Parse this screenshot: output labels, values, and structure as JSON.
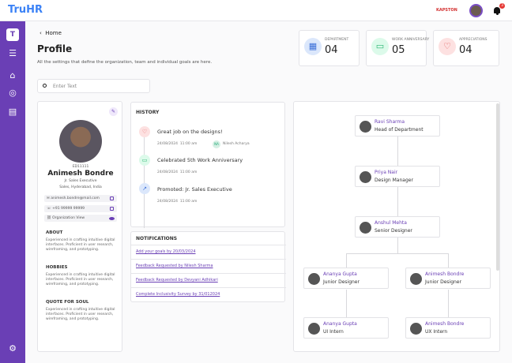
{
  "app": {
    "title": "TruHR",
    "company_logo": "KAPSTON",
    "notification_count": "3"
  },
  "sidebar": {
    "badge": "T",
    "icons": [
      "menu-icon",
      "home-icon",
      "target-icon",
      "chart-icon",
      "gear-icon"
    ]
  },
  "breadcrumb": {
    "back": "Home"
  },
  "page": {
    "title": "Profile",
    "subtitle": "All the settings that define the organization, team and individual goals are here."
  },
  "search": {
    "placeholder": "Enter Text"
  },
  "stats": [
    {
      "label": "DEPARTMENT",
      "value": "04",
      "icon": "building-icon",
      "color": "#dbe7fb"
    },
    {
      "label": "WORK ANNIVERSARY",
      "value": "05",
      "icon": "briefcase-icon",
      "color": "#dcfaea"
    },
    {
      "label": "APPRECIATIONS",
      "value": "04",
      "icon": "heart-icon",
      "color": "#fde1e1"
    }
  ],
  "profile": {
    "id": "ED11111",
    "name": "Animesh Bondre",
    "role": "Jr. Sales Executive",
    "location": "Sales, Hyderabad, India",
    "email": "animesh.bondre@mail.com",
    "phone": "+91 99999 99999",
    "org_view": "Organization View",
    "sections": [
      {
        "title": "ABOUT",
        "text": "Experienced in crafting intuitive digital interfaces. Proficient in user research, wireframing, and prototyping."
      },
      {
        "title": "HOBBIES",
        "text": "Experienced in crafting intuitive digital interfaces. Proficient in user research, wireframing, and prototyping."
      },
      {
        "title": "QUOTE FOR SOUL",
        "text": "Experienced in crafting intuitive digital interfaces. Proficient in user research, wireframing, and prototyping."
      }
    ]
  },
  "history": {
    "title": "HISTORY",
    "items": [
      {
        "text": "Great job on the designs!",
        "date": "24/08/2024",
        "time": "11:00 am",
        "by_initials": "NA",
        "by": "Nilesh Acharya"
      },
      {
        "text": "Celebrated 5th Work Anniversary",
        "date": "24/08/2024",
        "time": "11:00 am"
      },
      {
        "text": "Promoted: Jr. Sales Executive",
        "date": "24/08/2024",
        "time": "11:00 am"
      }
    ]
  },
  "notifications": {
    "title": "NOTIFICATIONS",
    "items": [
      "Add your goals by 20/03/2024",
      "Feedback Requested by Nilesh Sharma",
      "Feedback Requested by Devyani Adhikari",
      "Complete Inclusivity Survey by 31/012024"
    ]
  },
  "org": [
    {
      "name": "Ravi Sharma",
      "role": "Head of Department"
    },
    {
      "name": "Priya Nair",
      "role": "Design Manager"
    },
    {
      "name": "Anshul Mehta",
      "role": "Senior Designer"
    },
    {
      "name": "Ananya Gupta",
      "role": "Junior Designer"
    },
    {
      "name": "Animesh Bondre",
      "role": "Junior Designer"
    },
    {
      "name": "Ananya Gupta",
      "role": "UI Intern"
    },
    {
      "name": "Animesh Bondre",
      "role": "UX Intern"
    }
  ]
}
